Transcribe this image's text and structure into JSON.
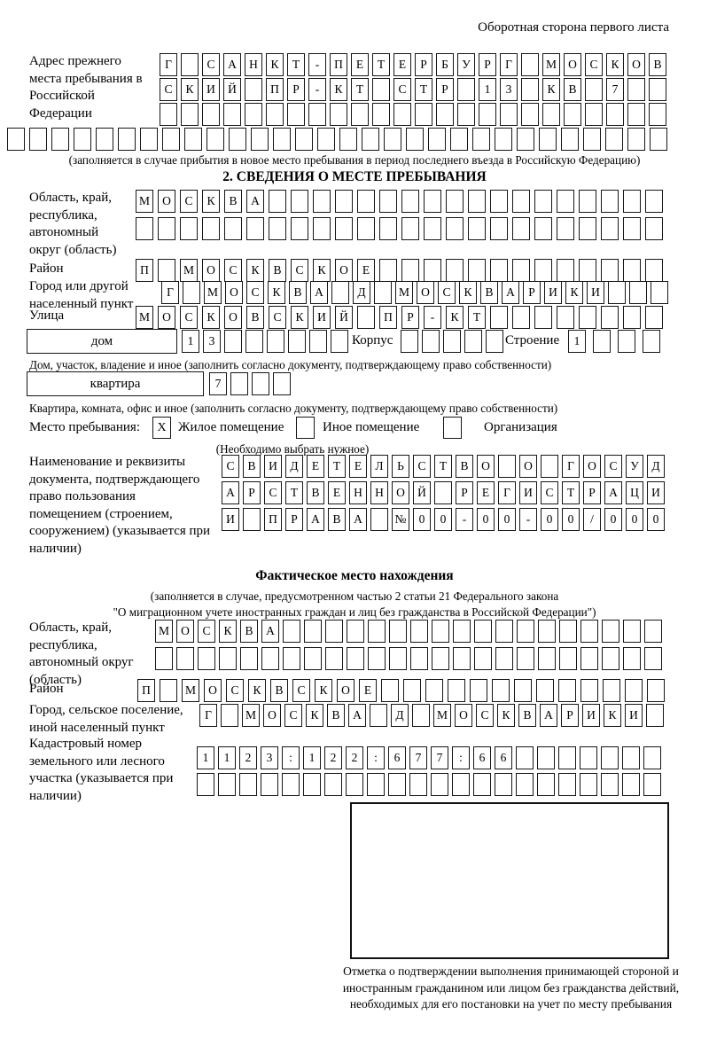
{
  "page": {
    "side_note": "Оборотная сторона первого листа"
  },
  "prev_address": {
    "label": "Адрес прежнего места пребывания в Российской Федерации",
    "rows": [
      {
        "count": 24,
        "text": "Г САНКТ-ПЕТЕРБУРГ МОСКОВ"
      },
      {
        "count": 24,
        "text": "СКИЙ ПР-КТ СТР 13 КВ 7"
      },
      {
        "count": 24,
        "text": ""
      },
      {
        "count": 30,
        "text": ""
      }
    ],
    "note": "(заполняется в случае прибытия в новое место пребывания в период последнего въезда в Российскую Федерацию)"
  },
  "section2": {
    "title": "2. СВЕДЕНИЯ О МЕСТЕ ПРЕБЫВАНИЯ",
    "region": {
      "label": "Область, край, республика, автономный округ (область)",
      "rows": [
        {
          "count": 24,
          "text": "МОСКВА"
        },
        {
          "count": 24,
          "text": ""
        }
      ]
    },
    "district": {
      "label": "Район",
      "row": {
        "count": 24,
        "text": "П МОСКВСКОЕ"
      }
    },
    "city": {
      "label": "Город или другой населенный пункт",
      "row": {
        "count": 24,
        "text": "Г МОСКВА Д МОСКВАРИКИ"
      }
    },
    "street": {
      "label": "Улица",
      "row": {
        "count": 24,
        "text": "МОСКОВСКИЙ ПР-КТ"
      }
    },
    "house": {
      "label_box": "дом",
      "cells": {
        "count": 8,
        "text": "13"
      },
      "korpus_label": "Корпус",
      "korpus_cells": {
        "count": 5,
        "text": ""
      },
      "stroenie_label": "Строение",
      "stroenie_cells": {
        "count": 4,
        "text": "1"
      },
      "note": "Дом, участок, владение и иное (заполнить согласно документу, подтверждающему право собственности)"
    },
    "apartment": {
      "label_box": "квартира",
      "cells": {
        "count": 4,
        "text": "7"
      },
      "note": "Квартира, комната, офис и иное (заполнить согласно документу, подтверждающему право собственности)"
    },
    "stay_type": {
      "label": "Место пребывания:",
      "options": [
        {
          "label": "Жилое помещение",
          "checked": "X"
        },
        {
          "label": "Иное помещение",
          "checked": ""
        },
        {
          "label": "Организация",
          "checked": ""
        }
      ],
      "note": "(Необходимо выбрать нужное)"
    },
    "document": {
      "label": "Наименование и реквизиты документа, подтверждающего право пользования помещением (строением, сооружением) (указывается при наличии)",
      "rows": [
        {
          "count": 21,
          "text": "СВИДЕТЕЛЬСТВО О ГОСУД"
        },
        {
          "count": 21,
          "text": "АРСТВЕННОЙ РЕГИСТРАЦИ"
        },
        {
          "count": 21,
          "text": "И ПРАВА №00-00-00/000"
        }
      ]
    }
  },
  "actual_location": {
    "title": "Фактическое место нахождения",
    "note1": "(заполняется в случае, предусмотренном частью 2 статьи 21 Федерального закона",
    "note2": "\"О миграционном учете иностранных граждан и лиц без гражданства в Российской Федерации\")",
    "region": {
      "label": "Область, край, республика, автономный округ (область)",
      "rows": [
        {
          "count": 24,
          "text": "МОСКВА"
        },
        {
          "count": 24,
          "text": ""
        }
      ]
    },
    "district": {
      "label": "Район",
      "row": {
        "count": 24,
        "text": "П МОСКВСКОЕ"
      }
    },
    "city": {
      "label": "Город, сельское поселение, иной населенный пункт",
      "row": {
        "count": 22,
        "text": "Г МОСКВА Д МОСКВАРИКИ"
      }
    },
    "cadastral": {
      "label": "Кадастровый номер земельного или лесного участка (указывается при наличии)",
      "rows": [
        {
          "count": 22,
          "text": "1123:122:677:66"
        },
        {
          "count": 22,
          "text": ""
        }
      ]
    }
  },
  "stamp": {
    "caption": "Отметка о подтверждении выполнения принимающей стороной и иностранным гражданином или лицом без гражданства действий, необходимых для его постановки на учет по месту пребывания"
  }
}
